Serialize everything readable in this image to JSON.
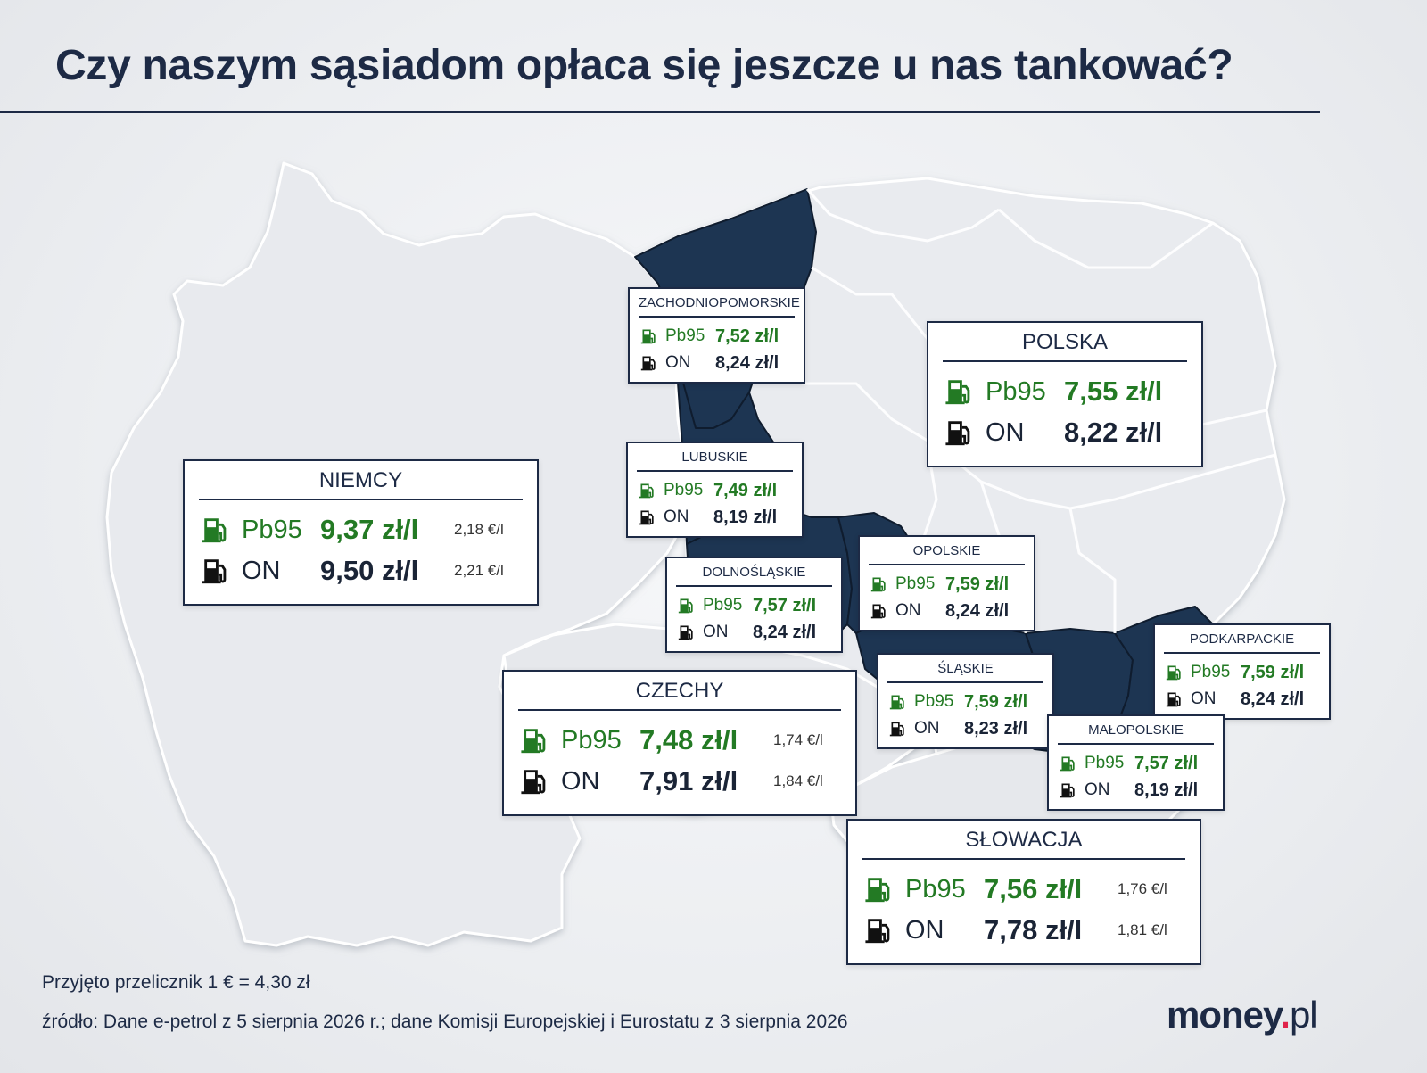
{
  "title": "Czy naszym sąsiadom opłaca się jeszcze u nas tankować?",
  "colors": {
    "navy": "#1d2a45",
    "green": "#237a24",
    "region_highlight": "#1d3552",
    "land": "#e9ebef"
  },
  "icons": {
    "pb95": "fuel-pump-icon-green",
    "on": "fuel-pump-icon-black"
  },
  "countries": {
    "niemcy": {
      "name": "NIEMCY",
      "pb95_label": "Pb95",
      "pb95_price": "9,37 zł/l",
      "pb95_eur": "2,18 €/l",
      "on_label": "ON",
      "on_price": "9,50 zł/l",
      "on_eur": "2,21 €/l"
    },
    "polska": {
      "name": "POLSKA",
      "pb95_label": "Pb95",
      "pb95_price": "7,55 zł/l",
      "on_label": "ON",
      "on_price": "8,22 zł/l"
    },
    "czechy": {
      "name": "CZECHY",
      "pb95_label": "Pb95",
      "pb95_price": "7,48 zł/l",
      "pb95_eur": "1,74 €/l",
      "on_label": "ON",
      "on_price": "7,91 zł/l",
      "on_eur": "1,84 €/l"
    },
    "slowacja": {
      "name": "SŁOWACJA",
      "pb95_label": "Pb95",
      "pb95_price": "7,56 zł/l",
      "pb95_eur": "1,76 €/l",
      "on_label": "ON",
      "on_price": "7,78 zł/l",
      "on_eur": "1,81 €/l"
    }
  },
  "regions": {
    "zachodniopomorskie": {
      "name": "ZACHODNIOPOMORSKIE",
      "pb95_label": "Pb95",
      "pb95_price": "7,52 zł/l",
      "on_label": "ON",
      "on_price": "8,24 zł/l"
    },
    "lubuskie": {
      "name": "LUBUSKIE",
      "pb95_label": "Pb95",
      "pb95_price": "7,49 zł/l",
      "on_label": "ON",
      "on_price": "8,19 zł/l"
    },
    "dolnoslaskie": {
      "name": "DOLNOŚLĄSKIE",
      "pb95_label": "Pb95",
      "pb95_price": "7,57 zł/l",
      "on_label": "ON",
      "on_price": "8,24 zł/l"
    },
    "opolskie": {
      "name": "OPOLSKIE",
      "pb95_label": "Pb95",
      "pb95_price": "7,59 zł/l",
      "on_label": "ON",
      "on_price": "8,24 zł/l"
    },
    "slaskie": {
      "name": "ŚLĄSKIE",
      "pb95_label": "Pb95",
      "pb95_price": "7,59 zł/l",
      "on_label": "ON",
      "on_price": "8,23 zł/l"
    },
    "podkarpackie": {
      "name": "PODKARPACKIE",
      "pb95_label": "Pb95",
      "pb95_price": "7,59 zł/l",
      "on_label": "ON",
      "on_price": "8,24 zł/l"
    },
    "malopolskie": {
      "name": "MAŁOPOLSKIE",
      "pb95_label": "Pb95",
      "pb95_price": "7,57 zł/l",
      "on_label": "ON",
      "on_price": "8,19 zł/l"
    }
  },
  "footer": {
    "exchange_note": "Przyjęto przelicznik 1 € = 4,30 zł",
    "source": "źródło: Dane e-petrol z 5 sierpnia 2026 r.; dane Komisji Europejskiej i Eurostatu z 3 sierpnia 2026"
  },
  "logo": {
    "brand": "money",
    "dot": ".",
    "tld": "pl"
  }
}
